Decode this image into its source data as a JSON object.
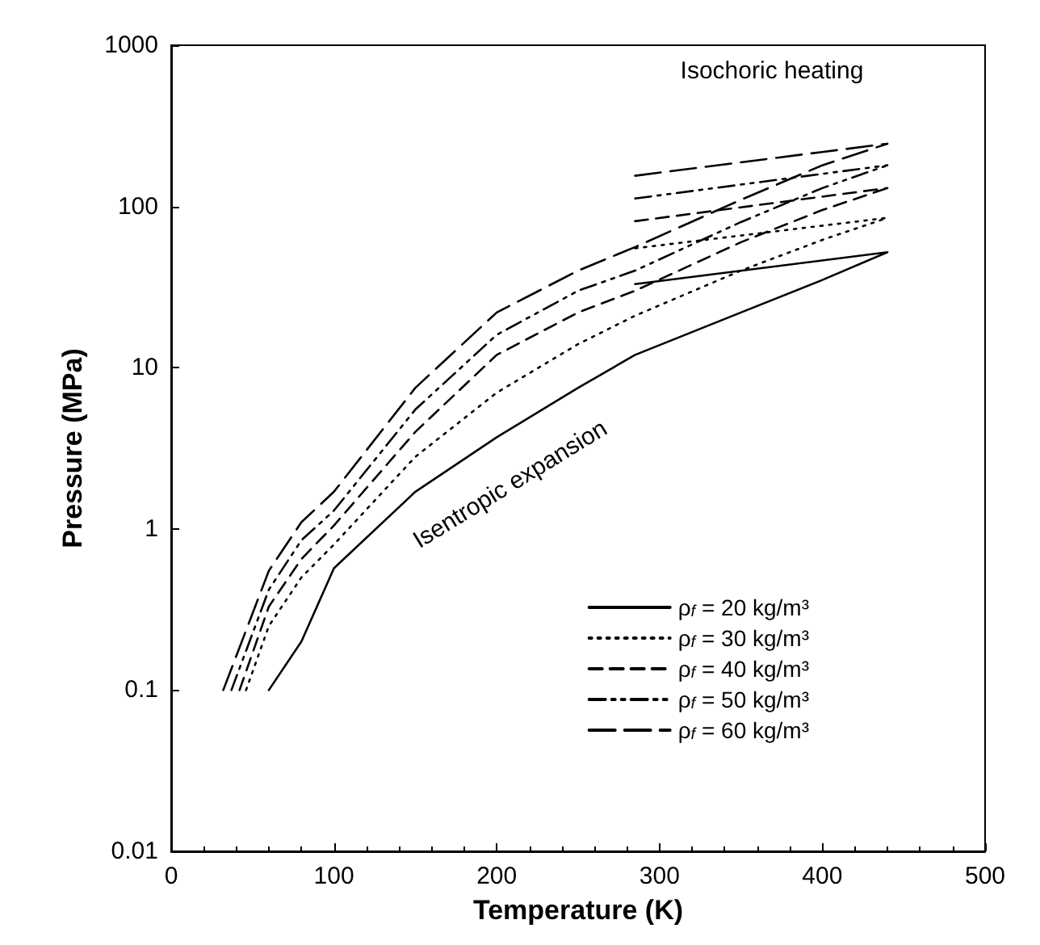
{
  "chart_data": {
    "type": "line",
    "xlabel": "Temperature (K)",
    "ylabel": "Pressure (MPa)",
    "log": "y",
    "grid": false,
    "legend": "bottom right",
    "marker": "none",
    "xlim": [
      0,
      500
    ],
    "xticks": [
      0,
      100,
      200,
      300,
      400,
      500
    ],
    "ylim": [
      0.01,
      1000
    ],
    "yticks": [
      0.01,
      0.1,
      1,
      10,
      100,
      1000
    ],
    "annotations": [
      "Isochoric heating",
      "Isentropic expansion"
    ],
    "series": [
      {
        "name": "ρ$_{f}$ = 20 kg/m³",
        "color": "#000000",
        "line_style": "solid",
        "x": [
          60,
          80,
          100,
          150,
          200,
          250,
          285,
          350,
          400,
          440,
          null,
          285,
          440
        ],
        "values": [
          0.1,
          0.2,
          0.57,
          1.7,
          3.7,
          7.5,
          12,
          22,
          35,
          52,
          null,
          33,
          52
        ]
      },
      {
        "name": "ρ$_{f}$ = 30 kg/m³",
        "color": "#000000",
        "line_style": "dotted",
        "x": [
          46,
          60,
          80,
          100,
          150,
          200,
          250,
          285,
          350,
          400,
          440,
          null,
          285,
          440
        ],
        "values": [
          0.1,
          0.25,
          0.5,
          0.8,
          2.8,
          7,
          14,
          21,
          40,
          62,
          85,
          null,
          55,
          85
        ]
      },
      {
        "name": "ρ$_{f}$ = 40 kg/m³",
        "color": "#000000",
        "line_style": "dashed",
        "x": [
          42,
          60,
          80,
          100,
          150,
          200,
          250,
          285,
          350,
          400,
          440,
          null,
          285,
          440
        ],
        "values": [
          0.1,
          0.33,
          0.65,
          1.05,
          4,
          12,
          22,
          30,
          60,
          95,
          130,
          null,
          81,
          130
        ]
      },
      {
        "name": "ρ$_{f}$ = 50 kg/m³",
        "color": "#000000",
        "line_style": "dashed",
        "x": [
          37,
          60,
          80,
          100,
          150,
          200,
          250,
          285,
          350,
          400,
          440,
          null,
          285,
          440
        ],
        "values": [
          0.1,
          0.42,
          0.85,
          1.3,
          5.5,
          16,
          30,
          40,
          80,
          130,
          180,
          null,
          112,
          180
        ]
      },
      {
        "name": "ρ$_{f}$ = 60 kg/m³",
        "color": "#000000",
        "line_style": "dashed",
        "x": [
          32,
          60,
          80,
          100,
          150,
          200,
          250,
          285,
          350,
          400,
          440,
          null,
          285,
          440
        ],
        "values": [
          0.1,
          0.55,
          1.1,
          1.7,
          7.5,
          22,
          40,
          56,
          110,
          180,
          245,
          null,
          155,
          245
        ]
      }
    ]
  }
}
